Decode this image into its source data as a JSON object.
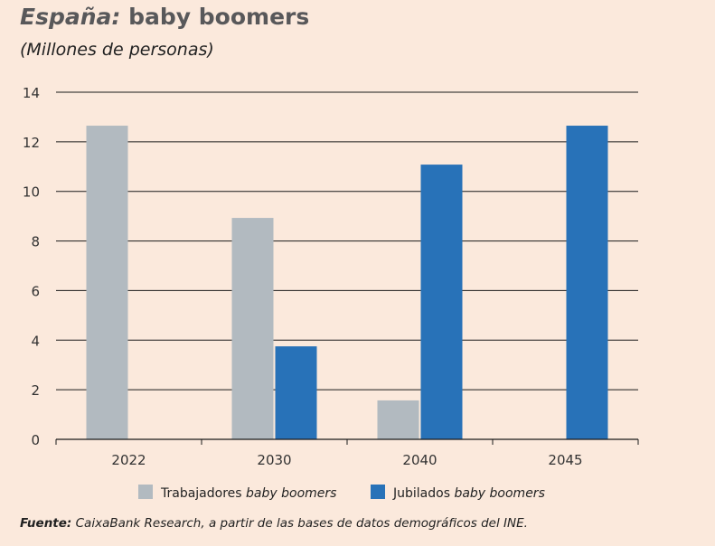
{
  "title_prefix": "España:",
  "title_main": "baby boomers",
  "subtitle": "(Millones de personas)",
  "source_label": "Fuente:",
  "source_text": "CaixaBank Research, a partir de las bases de datos demográficos del INE.",
  "chart_data": {
    "type": "bar",
    "categories": [
      "2022",
      "2030",
      "2040",
      "2045"
    ],
    "series": [
      {
        "name": "Trabajadores baby boomers",
        "name_plain": "Trabajadores",
        "name_italic": "baby boomers",
        "color": "#b2bac0",
        "values": [
          12.65,
          8.93,
          1.57,
          0
        ]
      },
      {
        "name": "Jubilados baby boomers",
        "name_plain": "Jubilados",
        "name_italic": "baby boomers",
        "color": "#2872b8",
        "values": [
          0,
          3.75,
          11.08,
          12.65
        ]
      }
    ],
    "ylim": [
      0,
      14
    ],
    "yticks": [
      0,
      2,
      4,
      6,
      8,
      10,
      12,
      14
    ],
    "grid": true,
    "legend": "bottom"
  }
}
